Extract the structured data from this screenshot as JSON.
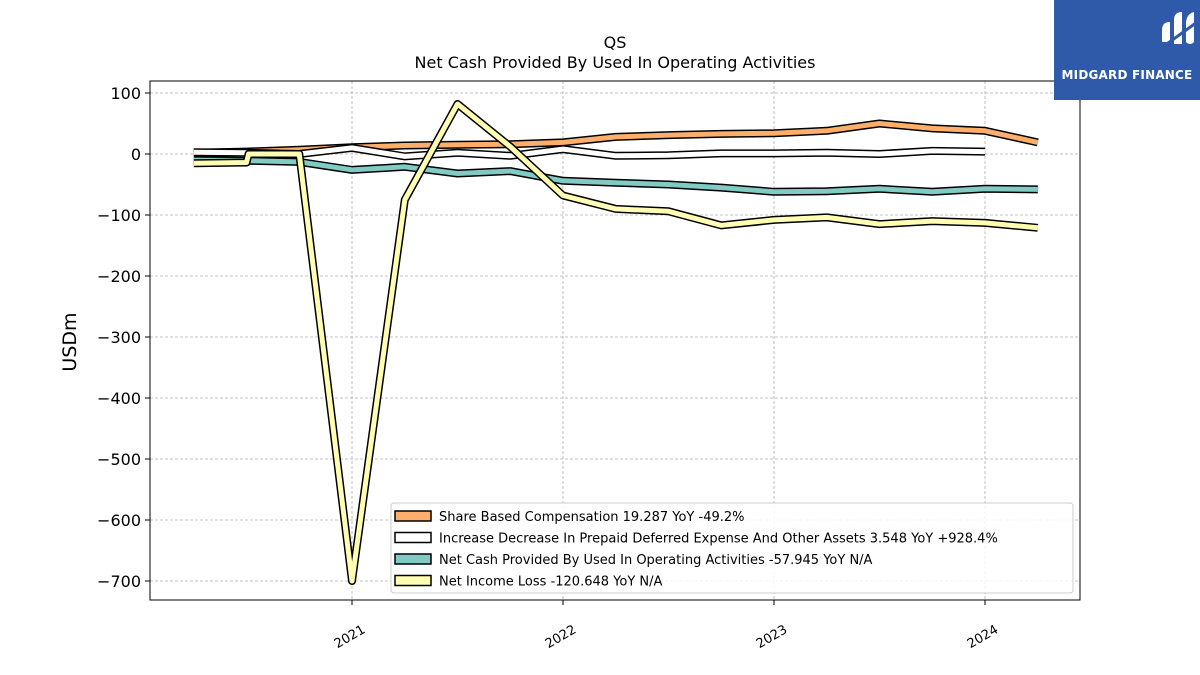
{
  "chart_data": {
    "type": "line",
    "title": "QS",
    "subtitle": "Net Cash Provided By Used In Operating Activities",
    "ylabel": "USDm",
    "xlabel": "",
    "ylim": [
      -735,
      120
    ],
    "xlim": [
      2020.24,
      2021.0,
      2024.45
    ],
    "grid": true,
    "legend_placement": "lower-right",
    "xticks": [
      {
        "label": "2021",
        "value": 2021.0
      },
      {
        "label": "2022",
        "value": 2022.0
      },
      {
        "label": "2023",
        "value": 2023.0
      },
      {
        "label": "2024",
        "value": 2024.0
      }
    ],
    "yticks": [
      100,
      0,
      -100,
      -200,
      -300,
      -400,
      -500,
      -600,
      -700
    ],
    "ytick_labels": [
      "100",
      "0",
      "−100",
      "−200",
      "−300",
      "−400",
      "−500",
      "−600",
      "−700"
    ],
    "series": [
      {
        "name": "Share Based Compensation  19.287 YoY -49.2%",
        "color": "#fdae6b",
        "x": [
          2020.25,
          2020.5,
          2020.75,
          2021.0,
          2021.25,
          2021.5,
          2021.75,
          2022.0,
          2022.25,
          2022.5,
          2022.75,
          2023.0,
          2023.25,
          2023.5,
          2023.75,
          2024.0,
          2024.25
        ],
        "values": [
          2,
          4,
          7,
          11,
          14,
          15,
          16,
          19,
          28,
          31,
          33,
          34,
          38,
          50,
          42,
          38,
          19
        ]
      },
      {
        "name": "Increase Decrease In Prepaid Deferred Expense And Other Assets  3.548 YoY +928.4%",
        "color": "#ffffff",
        "x": [
          2020.25,
          2020.5,
          2020.75,
          2021.0,
          2021.25,
          2021.5,
          2021.75,
          2022.0,
          2022.25,
          2022.5,
          2022.75,
          2023.0,
          2023.25,
          2023.5,
          2023.75,
          2024.0
        ],
        "values": [
          3,
          2,
          0,
          10,
          -4,
          2,
          -3,
          8,
          -3,
          -2,
          1,
          1,
          2,
          0,
          5,
          4
        ]
      },
      {
        "name": "Net Cash Provided By Used In Operating Activities  -57.945 YoY N/A",
        "color": "#80cbc4",
        "x": [
          2020.25,
          2020.5,
          2020.75,
          2021.0,
          2021.25,
          2021.5,
          2021.75,
          2022.0,
          2022.25,
          2022.5,
          2022.75,
          2023.0,
          2023.25,
          2023.5,
          2023.75,
          2024.0,
          2024.25
        ],
        "values": [
          -10,
          -11,
          -13,
          -26,
          -21,
          -32,
          -28,
          -44,
          -47,
          -50,
          -55,
          -62,
          -61,
          -57,
          -62,
          -57,
          -58
        ]
      },
      {
        "name": "Net Income Loss  -120.648 YoY N/A",
        "color": "#ffffb3",
        "x": [
          2020.25,
          2020.5,
          2020.51,
          2020.75,
          2021.0,
          2021.25,
          2021.5,
          2021.75,
          2022.0,
          2022.25,
          2022.5,
          2022.75,
          2023.0,
          2023.25,
          2023.5,
          2023.75,
          2024.0,
          2024.25
        ],
        "values": [
          -15,
          -14,
          0,
          0,
          -700,
          -75,
          82,
          12,
          -68,
          -90,
          -94,
          -117,
          -108,
          -104,
          -115,
          -110,
          -113,
          -121
        ]
      }
    ]
  },
  "brand": {
    "name": "MIDGARD FINANCE",
    "color": "#2f5aaa",
    "icon": "midgard-logo-icon"
  }
}
